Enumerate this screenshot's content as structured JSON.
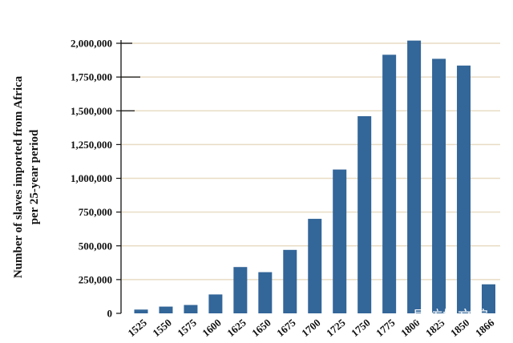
{
  "chart_data": {
    "type": "bar",
    "ylabel_lines": [
      "Number of slaves imported from Africa",
      "per 25-year period"
    ],
    "categories": [
      "1525",
      "1550",
      "1575",
      "1600",
      "1625",
      "1650",
      "1675",
      "1700",
      "1725",
      "1750",
      "1775",
      "1800",
      "1825",
      "1850",
      "1866"
    ],
    "series": [
      {
        "values": [
          28000,
          50000,
          62000,
          140000,
          343000,
          305000,
          470000,
          700000,
          1065000,
          1460000,
          1915000,
          2020000,
          1885000,
          1835000,
          215000
        ]
      }
    ],
    "ylim": [
      0,
      2000000
    ],
    "yticks": [
      0,
      250000,
      500000,
      750000,
      1000000,
      1250000,
      1500000,
      1750000,
      2000000
    ],
    "ytick_labels": [
      "0",
      "250,000",
      "500,000",
      "750,000",
      "1,000,000",
      "1,250,000",
      "1,500,000",
      "1,750,000",
      "2,000,000"
    ],
    "grid": true,
    "bar_color": "#336699",
    "grid_color": "#e8dcc4"
  },
  "watermark": "易坊好文馆"
}
